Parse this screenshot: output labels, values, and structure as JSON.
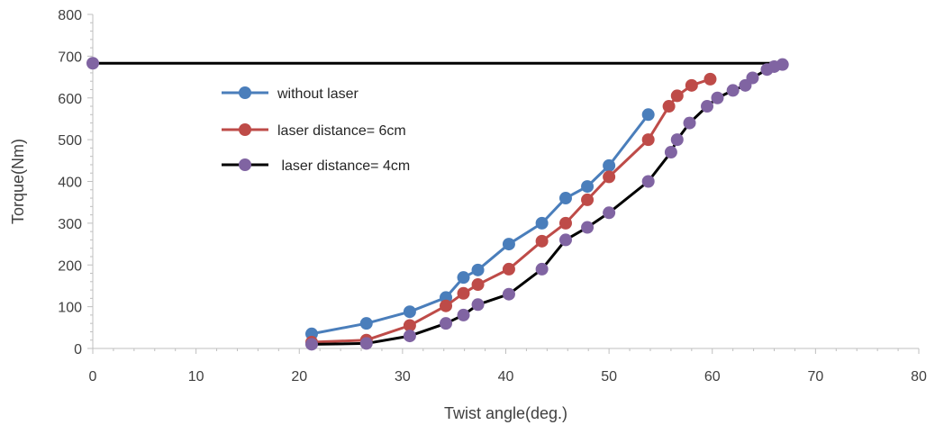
{
  "chart_data": {
    "type": "line",
    "title": "",
    "xlabel": "Twist angle(deg.)",
    "ylabel": "Torque(Nm)",
    "xlim": [
      0,
      80
    ],
    "ylim": [
      0,
      800
    ],
    "xticks": [
      "0",
      "10",
      "20",
      "30",
      "40",
      "50",
      "60",
      "70",
      "80"
    ],
    "yticks": [
      "0",
      "100",
      "200",
      "300",
      "400",
      "500",
      "600",
      "700",
      "800"
    ],
    "grid": false,
    "legend_position": "upper-left inside plot",
    "series": [
      {
        "name": "without laser",
        "line_color": "#4a7ebb",
        "marker_color": "#4a7ebb",
        "x": [
          21.2,
          26.5,
          30.7,
          34.2,
          35.9,
          37.3,
          40.3,
          43.5,
          45.8,
          47.9,
          50.0,
          53.8
        ],
        "y": [
          35,
          60,
          88,
          122,
          170,
          188,
          250,
          300,
          360,
          388,
          438,
          560
        ]
      },
      {
        "name": "laser distance= 6cm",
        "line_color": "#be4b48",
        "marker_color": "#be4b48",
        "x": [
          21.2,
          26.5,
          30.7,
          34.2,
          35.9,
          37.3,
          40.3,
          43.5,
          45.8,
          47.9,
          50.0,
          53.8,
          55.8,
          56.6,
          58.0,
          59.8
        ],
        "y": [
          15,
          20,
          55,
          102,
          132,
          153,
          190,
          257,
          300,
          356,
          411,
          500,
          580,
          605,
          630,
          645
        ]
      },
      {
        "name": " laser distance= 4cm",
        "line_color": "#000000",
        "marker_color": "#8064a2",
        "x": [
          0.0,
          21.2,
          26.5,
          30.7,
          34.2,
          35.9,
          37.3,
          40.3,
          43.5,
          45.8,
          47.9,
          50.0,
          53.8,
          56.0,
          56.6,
          57.8,
          59.5,
          60.5,
          62.0,
          63.2,
          63.9,
          65.3,
          66.0,
          66.8
        ],
        "y": [
          683,
          10,
          12,
          30,
          60,
          80,
          105,
          130,
          190,
          260,
          290,
          325,
          400,
          470,
          500,
          540,
          580,
          600,
          618,
          630,
          648,
          668,
          675,
          680
        ]
      }
    ],
    "reference_line": {
      "x": [
        0.0,
        66.8
      ],
      "y": [
        683,
        683
      ],
      "color": "#000000"
    }
  }
}
